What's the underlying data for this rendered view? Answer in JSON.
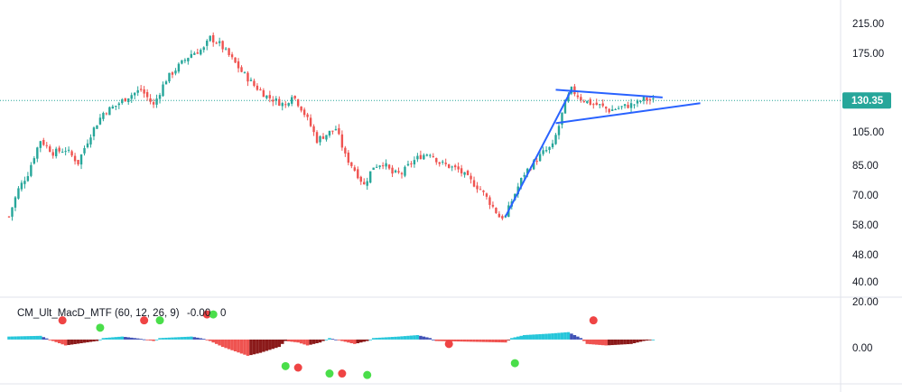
{
  "price_axis": {
    "ticks": [
      "215.00",
      "175.00",
      "105.00",
      "85.00",
      "70.00",
      "58.00",
      "48.00",
      "40.00"
    ],
    "current_price": "130.35"
  },
  "indicator": {
    "title": "CM_Ult_MacD_MTF (60, 12, 26, 9)",
    "value": "-0.00",
    "suffix": "0",
    "axis_ticks": [
      "20.00",
      "0.00"
    ]
  },
  "colors": {
    "up": "#26a69a",
    "down": "#ef5350",
    "trendline": "#2962ff",
    "price_line": "#26a69a",
    "hist_light_blue": "#26c6da",
    "hist_blue": "#3f51b5",
    "hist_red": "#ef5350",
    "hist_dark_red": "#8b1a1a",
    "dot_green": "#4ade4a",
    "dot_red": "#ef4444"
  },
  "chart_data": [
    {
      "type": "candlestick",
      "scale": "log",
      "ylim": [
        37,
        240
      ],
      "keypoints": [
        [
          0,
          60
        ],
        [
          3,
          72
        ],
        [
          6,
          80
        ],
        [
          10,
          100
        ],
        [
          14,
          92
        ],
        [
          18,
          94
        ],
        [
          22,
          86
        ],
        [
          26,
          104
        ],
        [
          30,
          120
        ],
        [
          34,
          126
        ],
        [
          38,
          134
        ],
        [
          42,
          140
        ],
        [
          46,
          126
        ],
        [
          50,
          150
        ],
        [
          54,
          164
        ],
        [
          58,
          178
        ],
        [
          62,
          184
        ],
        [
          64,
          198
        ],
        [
          67,
          190
        ],
        [
          70,
          176
        ],
        [
          74,
          158
        ],
        [
          78,
          144
        ],
        [
          82,
          134
        ],
        [
          85,
          130
        ],
        [
          88,
          126
        ],
        [
          90,
          136
        ],
        [
          93,
          124
        ],
        [
          96,
          110
        ],
        [
          98,
          100
        ],
        [
          101,
          104
        ],
        [
          104,
          108
        ],
        [
          107,
          90
        ],
        [
          110,
          82
        ],
        [
          113,
          74
        ],
        [
          116,
          84
        ],
        [
          119,
          86
        ],
        [
          122,
          80
        ],
        [
          125,
          80
        ],
        [
          128,
          86
        ],
        [
          131,
          90
        ],
        [
          134,
          92
        ],
        [
          137,
          86
        ],
        [
          140,
          84
        ],
        [
          143,
          82
        ],
        [
          147,
          76
        ],
        [
          150,
          72
        ],
        [
          153,
          66
        ],
        [
          156,
          60
        ],
        [
          158,
          60
        ],
        [
          161,
          70
        ],
        [
          164,
          80
        ],
        [
          167,
          86
        ],
        [
          170,
          92
        ],
        [
          173,
          96
        ],
        [
          175,
          110
        ],
        [
          177,
          128
        ],
        [
          179,
          140
        ],
        [
          182,
          132
        ],
        [
          185,
          128
        ],
        [
          188,
          126
        ],
        [
          191,
          122
        ],
        [
          194,
          124
        ],
        [
          197,
          126
        ],
        [
          200,
          128
        ],
        [
          202,
          132
        ],
        [
          205,
          130
        ]
      ],
      "trendlines": [
        {
          "from": [
            158,
            60
          ],
          "to": [
            179,
            140
          ]
        },
        {
          "from": [
            174,
            112
          ],
          "to": [
            220,
            128
          ]
        },
        {
          "from": [
            174,
            140
          ],
          "to": [
            208,
            133
          ]
        }
      ]
    },
    {
      "type": "histogram",
      "ylim": [
        -30,
        25
      ],
      "keypoints": [
        [
          0,
          2
        ],
        [
          10,
          2.5
        ],
        [
          14,
          -1
        ],
        [
          18,
          -4
        ],
        [
          28,
          -1
        ],
        [
          30,
          1
        ],
        [
          36,
          2
        ],
        [
          42,
          0.5
        ],
        [
          46,
          -1
        ],
        [
          48,
          1
        ],
        [
          58,
          2
        ],
        [
          62,
          0.5
        ],
        [
          64,
          -1
        ],
        [
          68,
          -5
        ],
        [
          76,
          -11
        ],
        [
          80,
          -9
        ],
        [
          86,
          -5
        ],
        [
          88,
          -1
        ],
        [
          92,
          -2
        ],
        [
          95,
          -4
        ],
        [
          99,
          -2
        ],
        [
          102,
          1
        ],
        [
          106,
          -1
        ],
        [
          110,
          -3
        ],
        [
          114,
          -1
        ],
        [
          116,
          1
        ],
        [
          124,
          2
        ],
        [
          130,
          3
        ],
        [
          134,
          1
        ],
        [
          136,
          -1
        ],
        [
          158,
          -2
        ],
        [
          160,
          1
        ],
        [
          164,
          3
        ],
        [
          172,
          4
        ],
        [
          178,
          5
        ],
        [
          182,
          1
        ],
        [
          184,
          -3
        ],
        [
          190,
          -4
        ],
        [
          198,
          -3
        ],
        [
          202,
          -1
        ],
        [
          205,
          0
        ]
      ],
      "signal_dots": [
        {
          "x": 17,
          "y": 13,
          "color": "red"
        },
        {
          "x": 29,
          "y": 8,
          "color": "green"
        },
        {
          "x": 43,
          "y": 13,
          "color": "red"
        },
        {
          "x": 48,
          "y": 13,
          "color": "green"
        },
        {
          "x": 63,
          "y": 17,
          "color": "red"
        },
        {
          "x": 65,
          "y": 17,
          "color": "green"
        },
        {
          "x": 88,
          "y": -18,
          "color": "green"
        },
        {
          "x": 92,
          "y": -19,
          "color": "red"
        },
        {
          "x": 102,
          "y": -23,
          "color": "green"
        },
        {
          "x": 106,
          "y": -23,
          "color": "red"
        },
        {
          "x": 114,
          "y": -24,
          "color": "green"
        },
        {
          "x": 140,
          "y": -3,
          "color": "red"
        },
        {
          "x": 161,
          "y": -16,
          "color": "green"
        },
        {
          "x": 186,
          "y": 13,
          "color": "red"
        }
      ]
    }
  ]
}
